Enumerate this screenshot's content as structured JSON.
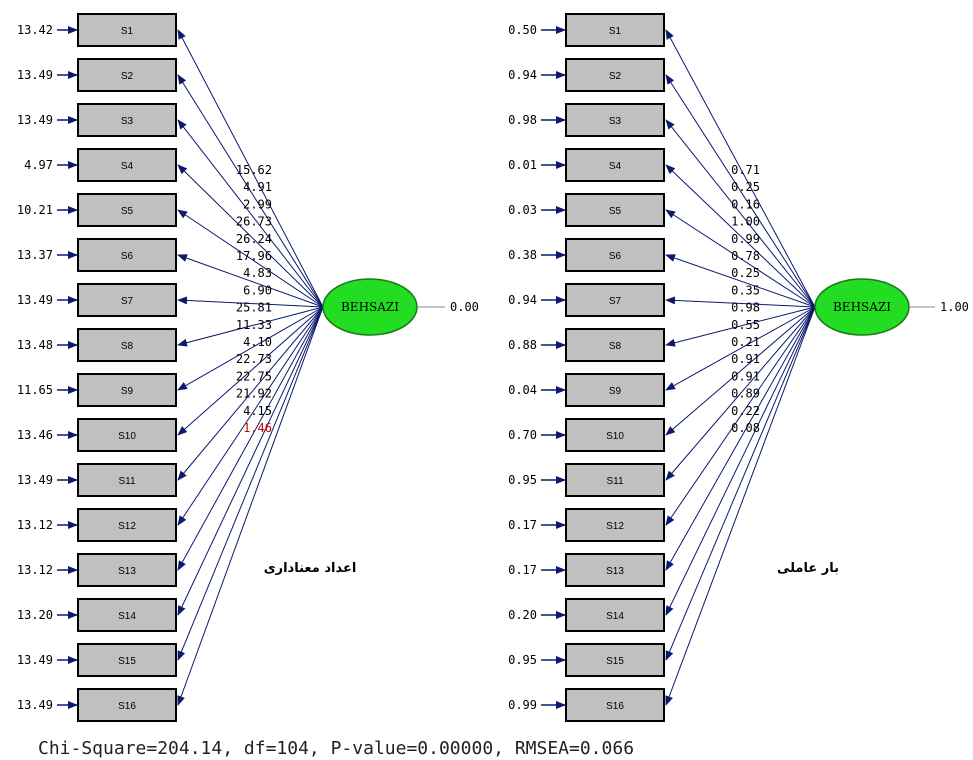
{
  "panels": [
    {
      "caption": "اعداد معناداری",
      "latent": {
        "name": "BEHSAZI",
        "variance": "0.00"
      },
      "indicators": [
        {
          "label": "S1",
          "error": "13.42",
          "path": "15.62",
          "highlight": false
        },
        {
          "label": "S2",
          "error": "13.49",
          "path": "4.91",
          "highlight": false
        },
        {
          "label": "S3",
          "error": "13.49",
          "path": "2.99",
          "highlight": false
        },
        {
          "label": "S4",
          "error": "4.97",
          "path": "26.73",
          "highlight": false
        },
        {
          "label": "S5",
          "error": "10.21",
          "path": "26.24",
          "highlight": false
        },
        {
          "label": "S6",
          "error": "13.37",
          "path": "17.96",
          "highlight": false
        },
        {
          "label": "S7",
          "error": "13.49",
          "path": "4.83",
          "highlight": false
        },
        {
          "label": "S8",
          "error": "13.48",
          "path": "6.90",
          "highlight": false
        },
        {
          "label": "S9",
          "error": "11.65",
          "path": "25.81",
          "highlight": false
        },
        {
          "label": "S10",
          "error": "13.46",
          "path": "11.33",
          "highlight": false
        },
        {
          "label": "S11",
          "error": "13.49",
          "path": "4.10",
          "highlight": false
        },
        {
          "label": "S12",
          "error": "13.12",
          "path": "22.73",
          "highlight": false
        },
        {
          "label": "S13",
          "error": "13.12",
          "path": "22.75",
          "highlight": false
        },
        {
          "label": "S14",
          "error": "13.20",
          "path": "21.92",
          "highlight": false
        },
        {
          "label": "S15",
          "error": "13.49",
          "path": "4.15",
          "highlight": false
        },
        {
          "label": "S16",
          "error": "13.49",
          "path": "1.46",
          "highlight": true
        }
      ]
    },
    {
      "caption": "بار عاملی",
      "latent": {
        "name": "BEHSAZI",
        "variance": "1.00"
      },
      "indicators": [
        {
          "label": "S1",
          "error": "0.50",
          "path": "0.71",
          "highlight": false
        },
        {
          "label": "S2",
          "error": "0.94",
          "path": "0.25",
          "highlight": false
        },
        {
          "label": "S3",
          "error": "0.98",
          "path": "0.16",
          "highlight": false
        },
        {
          "label": "S4",
          "error": "0.01",
          "path": "1.00",
          "highlight": false
        },
        {
          "label": "S5",
          "error": "0.03",
          "path": "0.99",
          "highlight": false
        },
        {
          "label": "S6",
          "error": "0.38",
          "path": "0.78",
          "highlight": false
        },
        {
          "label": "S7",
          "error": "0.94",
          "path": "0.25",
          "highlight": false
        },
        {
          "label": "S8",
          "error": "0.88",
          "path": "0.35",
          "highlight": false
        },
        {
          "label": "S9",
          "error": "0.04",
          "path": "0.98",
          "highlight": false
        },
        {
          "label": "S10",
          "error": "0.70",
          "path": "0.55",
          "highlight": false
        },
        {
          "label": "S11",
          "error": "0.95",
          "path": "0.21",
          "highlight": false
        },
        {
          "label": "S12",
          "error": "0.17",
          "path": "0.91",
          "highlight": false
        },
        {
          "label": "S13",
          "error": "0.17",
          "path": "0.91",
          "highlight": false
        },
        {
          "label": "S14",
          "error": "0.20",
          "path": "0.89",
          "highlight": false
        },
        {
          "label": "S15",
          "error": "0.95",
          "path": "0.22",
          "highlight": false
        },
        {
          "label": "S16",
          "error": "0.99",
          "path": "0.08",
          "highlight": false
        }
      ]
    }
  ],
  "fit_statistics": "Chi-Square=204.14, df=104, P-value=0.00000, RMSEA=0.066",
  "colors": {
    "box_fill": "#c0c0c0",
    "box_stroke": "#000000",
    "arrow": "#0b1a6e",
    "latent_fill": "#22dd22",
    "latent_stroke": "#1a7a1a",
    "text": "#000000",
    "highlight_text": "#cc0000",
    "variance_line": "#888888"
  }
}
